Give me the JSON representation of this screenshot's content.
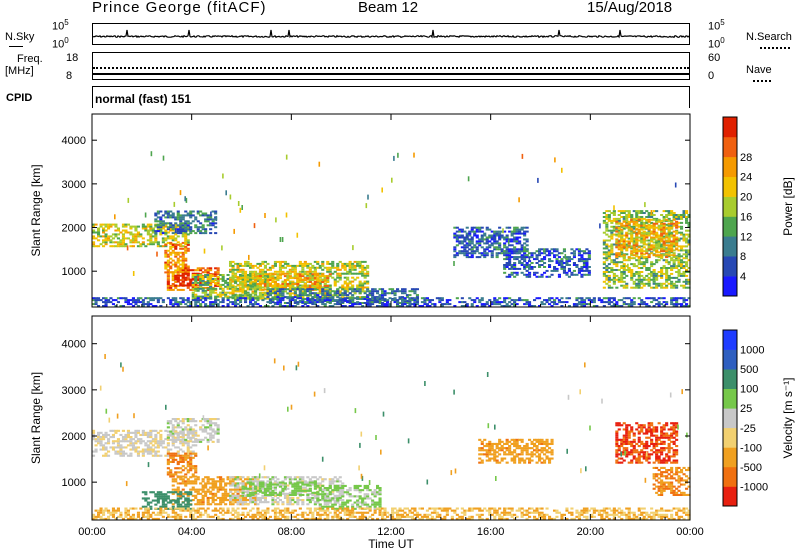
{
  "header": {
    "station": "Prince George (fitACF)",
    "beam": "Beam 12",
    "date": "15/Aug/2018"
  },
  "summary_panel": {
    "nsky_label": "N.Sky",
    "nsky_ticks": [
      "10^5",
      "10^0"
    ],
    "nsearch_label": "N.Search",
    "nsearch_ticks": [
      "10^5",
      "10^0"
    ],
    "freq_label_line1": "Freq.",
    "freq_label_line2": "[MHz]",
    "freq_ticks": [
      "18",
      "8"
    ],
    "nave_label": "Nave",
    "nave_ticks": [
      "60",
      "0"
    ],
    "cpid_label": "CPID",
    "cpid_value": "normal (fast) 151"
  },
  "chart_data": [
    {
      "type": "heatmap",
      "title": "",
      "quantity": "power",
      "xlabel": "",
      "ylabel": "Slant Range [km]",
      "x_ticks": [
        "00:00",
        "04:00",
        "08:00",
        "12:00",
        "16:00",
        "20:00",
        "00:00"
      ],
      "y_ticks": [
        "1000",
        "2000",
        "3000",
        "4000"
      ],
      "ylim": [
        180,
        4600
      ],
      "colorbar": {
        "label": "Power [dB]",
        "ticks": [
          "4",
          "8",
          "12",
          "16",
          "20",
          "24",
          "28"
        ],
        "range": [
          0,
          30
        ],
        "colors": [
          "#1919ff",
          "#2748b4",
          "#3a7c8f",
          "#4ea54e",
          "#a8cc2e",
          "#f2c200",
          "#f59a00",
          "#f06010",
          "#e02000"
        ]
      },
      "regions": [
        {
          "t": [
            0.0,
            3.9
          ],
          "r": [
            1550,
            2050
          ],
          "level": 16
        },
        {
          "t": [
            2.5,
            4.9
          ],
          "r": [
            1850,
            2350
          ],
          "level": 8
        },
        {
          "t": [
            2.9,
            3.9
          ],
          "r": [
            950,
            1650
          ],
          "level": 22
        },
        {
          "t": [
            3.0,
            5.0
          ],
          "r": [
            550,
            1050
          ],
          "level": 24
        },
        {
          "t": [
            3.3,
            4.3
          ],
          "r": [
            650,
            950
          ],
          "level": 30
        },
        {
          "t": [
            4.0,
            7.0
          ],
          "r": [
            350,
            900
          ],
          "level": 14
        },
        {
          "t": [
            5.5,
            11.0
          ],
          "r": [
            380,
            1200
          ],
          "level": 16
        },
        {
          "t": [
            6.5,
            9.5
          ],
          "r": [
            550,
            950
          ],
          "level": 20
        },
        {
          "t": [
            7.0,
            13.0
          ],
          "r": [
            250,
            600
          ],
          "level": 8
        },
        {
          "t": [
            0.0,
            24.0
          ],
          "r": [
            180,
            380
          ],
          "level": 6
        },
        {
          "t": [
            14.5,
            17.5
          ],
          "r": [
            1300,
            2000
          ],
          "level": 6
        },
        {
          "t": [
            16.5,
            20.0
          ],
          "r": [
            850,
            1500
          ],
          "level": 6
        },
        {
          "t": [
            20.5,
            24.0
          ],
          "r": [
            600,
            2400
          ],
          "level": 14
        },
        {
          "t": [
            21.0,
            23.5
          ],
          "r": [
            1300,
            2200
          ],
          "level": 20
        }
      ]
    },
    {
      "type": "heatmap",
      "title": "",
      "quantity": "velocity",
      "xlabel": "Time UT",
      "ylabel": "Slant Range [km]",
      "x_ticks": [
        "00:00",
        "04:00",
        "08:00",
        "12:00",
        "16:00",
        "20:00",
        "00:00"
      ],
      "y_ticks": [
        "1000",
        "2000",
        "3000",
        "4000"
      ],
      "ylim": [
        180,
        4600
      ],
      "colorbar": {
        "label": "Velocity [m s⁻¹]",
        "ticks": [
          "1000",
          "500",
          "100",
          "25",
          "-25",
          "-100",
          "-500",
          "-1000"
        ],
        "colors": [
          "#1f3cff",
          "#2f5fc0",
          "#3c8f6a",
          "#76c84a",
          "#c8c8c8",
          "#f2d070",
          "#f0a020",
          "#f07010",
          "#e82010"
        ]
      },
      "regions": [
        {
          "t": [
            0.0,
            4.2
          ],
          "r": [
            1550,
            2100
          ],
          "level": -10
        },
        {
          "t": [
            3.0,
            5.0
          ],
          "r": [
            1850,
            2350
          ],
          "level": 0
        },
        {
          "t": [
            3.0,
            4.2
          ],
          "r": [
            1100,
            1600
          ],
          "level": -300
        },
        {
          "t": [
            3.2,
            6.5
          ],
          "r": [
            500,
            1100
          ],
          "level": -200
        },
        {
          "t": [
            5.5,
            10.0
          ],
          "r": [
            500,
            1100
          ],
          "level": 0
        },
        {
          "t": [
            6.0,
            9.0
          ],
          "r": [
            700,
            1000
          ],
          "level": 30
        },
        {
          "t": [
            2.0,
            4.0
          ],
          "r": [
            400,
            800
          ],
          "level": 150
        },
        {
          "t": [
            9.0,
            11.5
          ],
          "r": [
            400,
            900
          ],
          "level": 20
        },
        {
          "t": [
            0.0,
            24.0
          ],
          "r": [
            180,
            450
          ],
          "level": -60
        },
        {
          "t": [
            15.5,
            18.5
          ],
          "r": [
            1400,
            1900
          ],
          "level": -200
        },
        {
          "t": [
            21.0,
            23.5
          ],
          "r": [
            1400,
            2300
          ],
          "level": -800
        },
        {
          "t": [
            22.5,
            24.0
          ],
          "r": [
            700,
            1300
          ],
          "level": -300
        }
      ]
    }
  ]
}
